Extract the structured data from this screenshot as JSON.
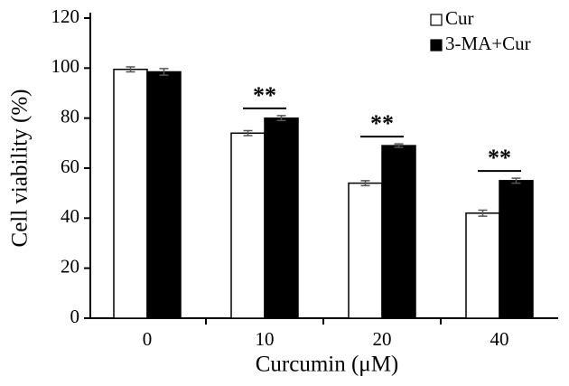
{
  "chart_data": {
    "type": "bar",
    "x_label": "Curcumin (μM)",
    "y_label": "Cell viability (%)",
    "categories": [
      "0",
      "10",
      "20",
      "40"
    ],
    "series": [
      {
        "name": "Cur",
        "color": "#ffffff",
        "values": [
          99.5,
          74,
          54,
          42
        ],
        "errors": [
          1,
          1,
          1,
          1.2
        ]
      },
      {
        "name": "3-MA+Cur",
        "color": "#000000",
        "values": [
          98.5,
          80,
          69,
          55
        ],
        "errors": [
          1.3,
          1,
          0.7,
          1
        ]
      }
    ],
    "significance": [
      null,
      "**",
      "**",
      "**"
    ],
    "ylim": [
      0,
      120
    ],
    "yticks": [
      0,
      20,
      40,
      60,
      80,
      100,
      120
    ],
    "legend": "upper right",
    "grid": false
  }
}
